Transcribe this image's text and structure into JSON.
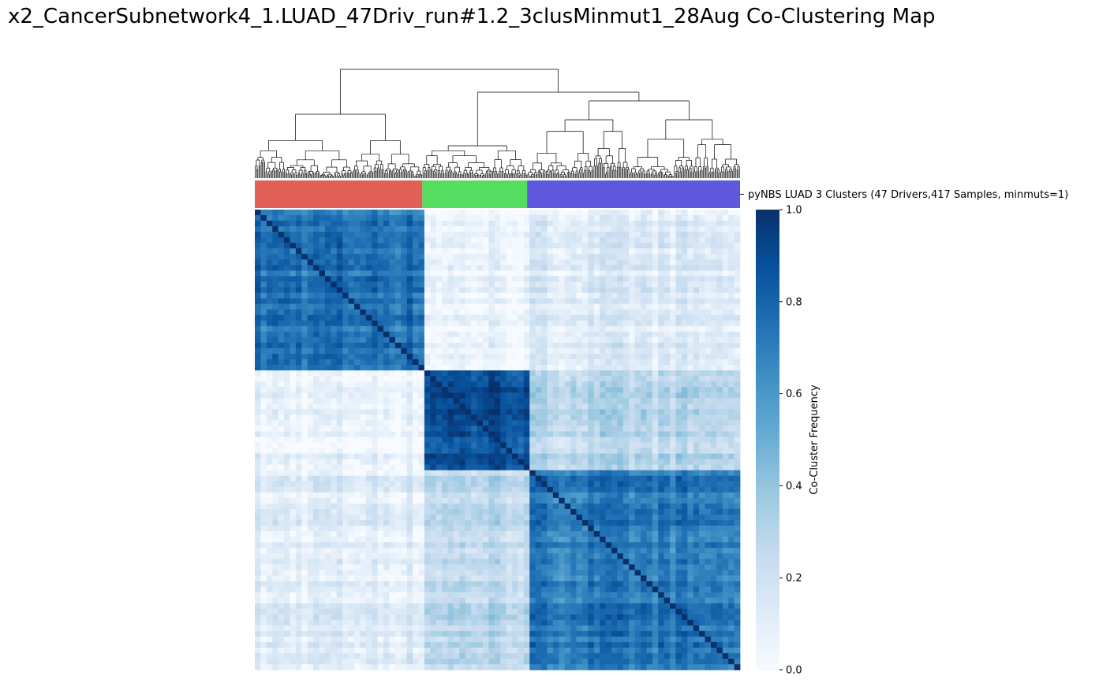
{
  "title": "x2_CancerSubnetwork4_1.LUAD_47Driv_run#1.2_3clusMinmut1_28Aug Co-Clustering Map",
  "chart_data": {
    "type": "heatmap",
    "title": "x2_CancerSubnetwork4_1.LUAD_47Driv_run#1.2_3clusMinmut1_28Aug Co-Clustering Map",
    "row_color_label": "pyNBS LUAD 3 Clusters (47 Drivers,417 Samples, minmuts=1)",
    "colorbar_label": "Co-Cluster Frequency",
    "colorbar_ticks": [
      "0.0",
      "0.2",
      "0.4",
      "0.6",
      "0.8",
      "1.0"
    ],
    "colorbar_range": [
      0,
      1
    ],
    "colormap": [
      "#f7fbff",
      "#deebf7",
      "#c6dbef",
      "#9ecae1",
      "#6baed6",
      "#4292c6",
      "#2171b5",
      "#08519c",
      "#08306b"
    ],
    "n_samples": 417,
    "clusters": [
      {
        "color": "#e06055",
        "size": 144
      },
      {
        "color": "#55dd60",
        "size": 90
      },
      {
        "color": "#5f58dd",
        "size": 183
      }
    ],
    "block_values": [
      [
        0.75,
        0.05,
        0.12
      ],
      [
        0.05,
        0.88,
        0.28
      ],
      [
        0.12,
        0.28,
        0.72
      ]
    ]
  }
}
